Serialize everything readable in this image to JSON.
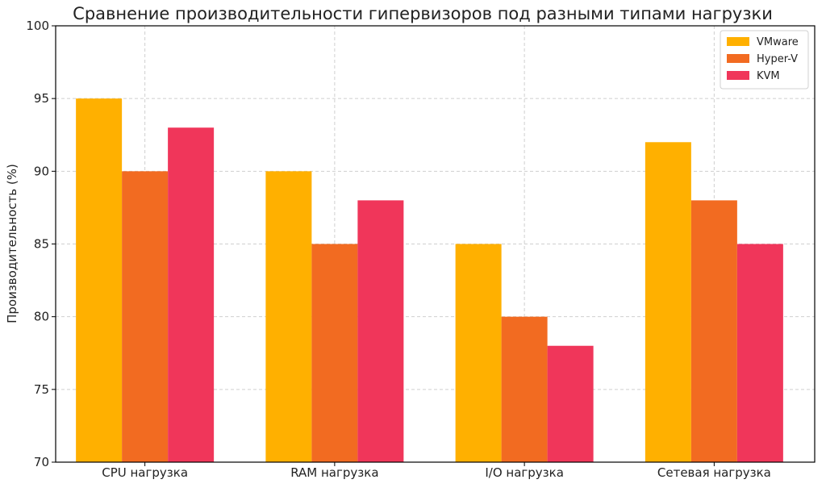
{
  "chart_data": {
    "type": "bar",
    "title": "Сравнение производительности гипервизоров под разными типами нагрузки",
    "xlabel": "",
    "ylabel": "Производительность (%)",
    "categories": [
      "CPU нагрузка",
      "RAM нагрузка",
      "I/O нагрузка",
      "Сетевая нагрузка"
    ],
    "series": [
      {
        "name": "VMware",
        "color": "#FFB000",
        "values": [
          95,
          90,
          85,
          92
        ]
      },
      {
        "name": "Hyper-V",
        "color": "#F26B21",
        "values": [
          90,
          85,
          80,
          88
        ]
      },
      {
        "name": "KVM",
        "color": "#F0365A",
        "values": [
          93,
          88,
          78,
          85
        ]
      }
    ],
    "ylim": [
      70,
      100
    ],
    "yticks": [
      70,
      75,
      80,
      85,
      90,
      95,
      100
    ],
    "grid": true,
    "legend_position": "top-right"
  }
}
